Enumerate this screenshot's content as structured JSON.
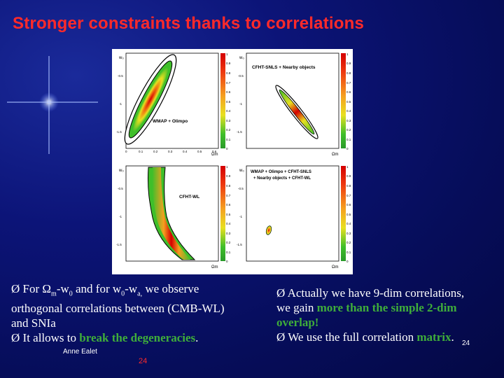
{
  "slide": {
    "title": "Stronger constraints thanks to correlations",
    "author": "Anne Ealet",
    "page_number": "24",
    "footer_number": "24"
  },
  "panels": [
    {
      "label": "WMAP + Olimpo",
      "y_axis": "w₀",
      "x_axis": "Ωm"
    },
    {
      "label": "CFHT-SNLS + Nearby objects",
      "y_axis": "w₀",
      "x_axis": "Ωm"
    },
    {
      "label": "CFHT-WL",
      "y_axis": "w₀",
      "x_axis": "Ωm"
    },
    {
      "label_line1": "WMAP + Olimpo + CFHT-SNLS",
      "label_line2": "+ Nearby objects + CFHT-WL",
      "y_axis": "w₀",
      "x_axis": "Ωm"
    }
  ],
  "colorbar_ticks": [
    "1",
    "0.9",
    "0.8",
    "0.7",
    "0.6",
    "0.5",
    "0.4",
    "0.3",
    "0.2",
    "0.1",
    "0"
  ],
  "y_ticks": [
    "-0.5",
    "-1",
    "-1.5"
  ],
  "x_ticks": [
    "0",
    "0.1",
    "0.2",
    "0.3",
    "0.4",
    "0.5",
    "0.6"
  ],
  "left_text": {
    "l1_pre": "Ø For Ω",
    "l1_sub1": "m",
    "l1_mid": "-w",
    "l1_sub2": "0",
    "l1_post": " and for w",
    "l1_sub3": "0",
    "l1_post2": "-w",
    "l1_sub4": "a,",
    "l1_end": " we observe",
    "l2": "orthogonal correlations between  (CMB-WL)",
    "l3": "and SNIa",
    "l4_pre": "Ø It allows to ",
    "l4_highlight": "break the degeneracies",
    "l4_end": "."
  },
  "right_text": {
    "l1": "Ø Actually we have 9-dim correlations,",
    "l2_pre": "we gain ",
    "l2_highlight": "more than the simple 2-dim",
    "l3_highlight": "overlap!",
    "l4_pre": "Ø We use the full correlation ",
    "l4_highlight": "matrix",
    "l4_end": "."
  },
  "colors": {
    "title": "#ff2a2a",
    "highlight": "#3fae3a",
    "background": "#0c1478"
  }
}
